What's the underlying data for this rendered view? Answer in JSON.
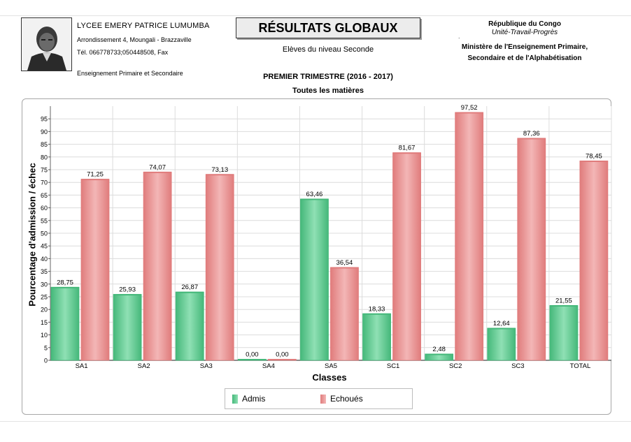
{
  "header": {
    "school_name": "LYCEE EMERY PATRICE LUMUMBA",
    "address": "Arrondissement 4, Moungali - Brazzaville",
    "phone": "Tél. 066778733;050448508, Fax",
    "education": "Enseignement Primaire et Secondaire",
    "portrait_label": "portrait",
    "title": "RÉSULTATS GLOBAUX",
    "level": "Elèves du niveau Seconde",
    "republic": "République du Congo",
    "motto": "Unité-Travail-Progrès",
    "ministry_line1": "Ministère de l'Enseignement Primaire,",
    "ministry_line2": "Secondaire et de l'Alphabétisation",
    "trimestre": "PREMIER TRIMESTRE (2016 - 2017)",
    "matieres": "Toutes les matières"
  },
  "colors": {
    "admis": "#45b87a",
    "admis_light": "#8fe0b4",
    "echoues": "#e07c7c",
    "echoues_light": "#f3b6b6"
  },
  "chart_data": {
    "type": "bar",
    "title": "",
    "xlabel": "Classes",
    "ylabel": "Pourcentage d'admission / échec",
    "ylim": [
      0,
      100
    ],
    "yticks": [
      0,
      5,
      10,
      15,
      20,
      25,
      30,
      35,
      40,
      45,
      50,
      55,
      60,
      65,
      70,
      75,
      80,
      85,
      90,
      95
    ],
    "categories": [
      "SA1",
      "SA2",
      "SA3",
      "SA4",
      "SA5",
      "SC1",
      "SC2",
      "SC3",
      "TOTAL"
    ],
    "series": [
      {
        "name": "Admis",
        "values": [
          28.75,
          25.93,
          26.87,
          0.0,
          63.46,
          18.33,
          2.48,
          12.64,
          21.55
        ],
        "labels": [
          "28,75",
          "25,93",
          "26,87",
          "0,00",
          "63,46",
          "18,33",
          "2,48",
          "12,64",
          "21,55"
        ]
      },
      {
        "name": "Echoués",
        "values": [
          71.25,
          74.07,
          73.13,
          0.0,
          36.54,
          81.67,
          97.52,
          87.36,
          78.45
        ],
        "labels": [
          "71,25",
          "74,07",
          "73,13",
          "0,00",
          "36,54",
          "81,67",
          "97,52",
          "87,36",
          "78,45"
        ]
      }
    ],
    "grid": true,
    "legend_position": "bottom"
  }
}
